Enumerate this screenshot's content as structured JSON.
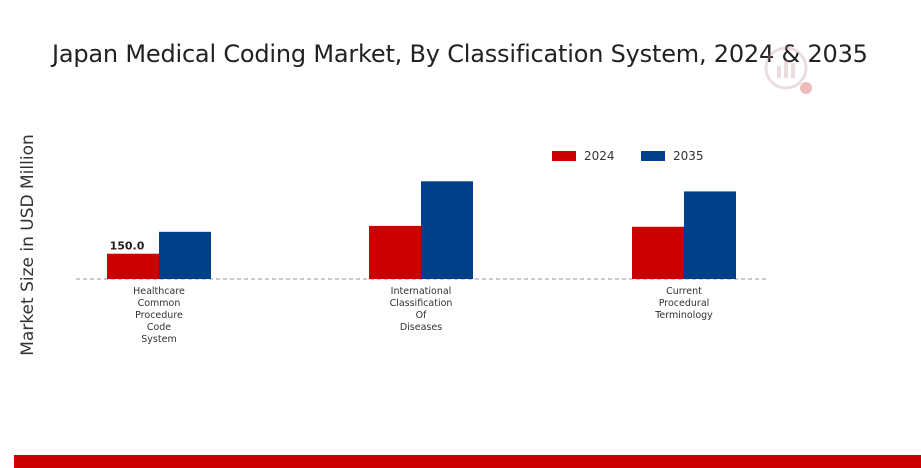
{
  "chart_data": {
    "type": "bar",
    "title": "Japan Medical Coding Market, By Classification System, 2024 & 2035",
    "ylabel": "Market Size in USD Million",
    "xlabel": "",
    "categories": [
      [
        "Healthcare",
        "Common",
        "Procedure",
        "Code",
        "System"
      ],
      [
        "International",
        "Classification",
        "Of",
        "Diseases"
      ],
      [
        "Current",
        "Procedural",
        "Terminology"
      ]
    ],
    "series": [
      {
        "name": "2024",
        "color": "#cc0000",
        "values": [
          150.0,
          315.0,
          310.0
        ]
      },
      {
        "name": "2035",
        "color": "#003f8a",
        "values": [
          280.0,
          580.0,
          520.0
        ]
      }
    ],
    "data_labels": [
      {
        "series": "2024",
        "category_index": 0,
        "text": "150.0"
      }
    ],
    "ylim": [
      0,
      1300
    ],
    "legend_position": "top-right",
    "grid": false
  }
}
